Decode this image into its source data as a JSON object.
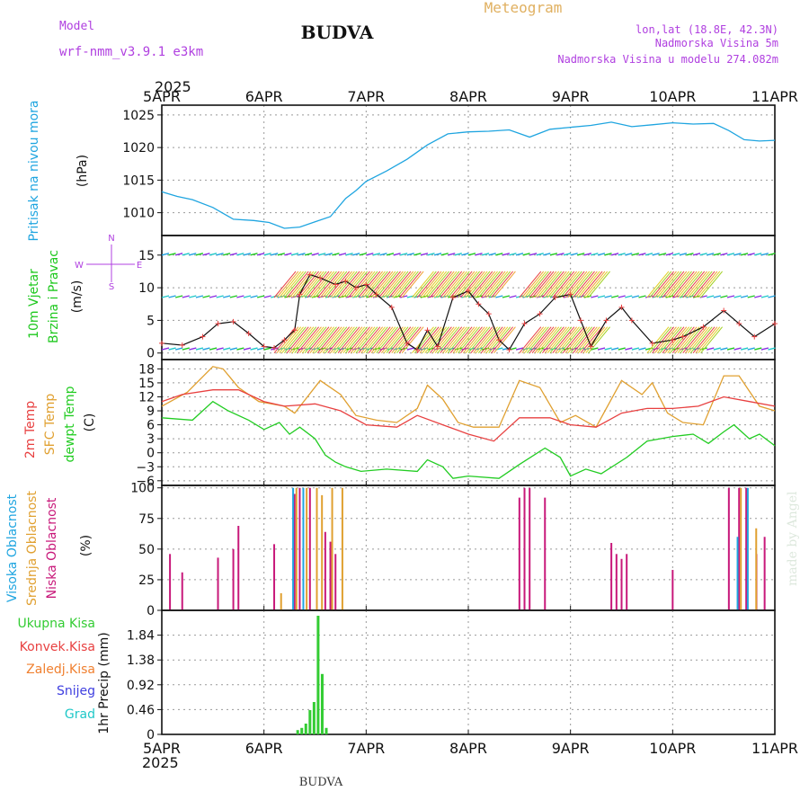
{
  "header": {
    "model_label": "Model",
    "model_name": "wrf-nmm_v3.9.1 e3km",
    "station": "BUDVA",
    "meteogram_label": "Meteogram",
    "lonlat": "lon,lat (18.8E, 42.3N)",
    "elevation": "Nadmorska Visina 5m",
    "model_elevation": "Nadmorska Visina u modelu 274.082m",
    "footer_station": "BUDVA",
    "made_by": "made by Angel"
  },
  "colors": {
    "pressure": "#1fa5e0",
    "wind_green": "#1ec81e",
    "temp_red": "#e84040",
    "sfc_orange": "#e0a030",
    "dewpt_green": "#22cc22",
    "high_cloud": "#1fa5e0",
    "mid_cloud": "#e0a030",
    "low_cloud": "#c8187a",
    "precip_total": "#33cc33",
    "precip_conv": "#e84040",
    "precip_frz": "#f08030",
    "precip_snow": "#4040e0",
    "precip_grad": "#20c8c8",
    "purple": "#b040e0"
  },
  "chart_data": [
    {
      "type": "line",
      "id": "pressure",
      "ylabel_parts": [
        "Pritisak na nivou mora",
        "(hPa)"
      ],
      "ylim": [
        1006.5,
        1026.5
      ],
      "yticks": [
        1010,
        1015,
        1020,
        1025
      ],
      "x_start": "5APR 2025",
      "x_ticks": [
        "5APR",
        "6APR",
        "7APR",
        "8APR",
        "9APR",
        "10APR",
        "11APR"
      ],
      "series": [
        {
          "name": "Pritisak na nivou mora",
          "x": [
            0,
            0.15,
            0.3,
            0.5,
            0.7,
            0.9,
            1.05,
            1.2,
            1.35,
            1.5,
            1.65,
            1.8,
            1.9,
            2.0,
            2.2,
            2.4,
            2.6,
            2.8,
            3.0,
            3.2,
            3.4,
            3.6,
            3.8,
            4.0,
            4.2,
            4.4,
            4.6,
            4.8,
            5.0,
            5.2,
            5.4,
            5.55,
            5.7,
            5.85,
            6.0
          ],
          "values": [
            1013.2,
            1012.5,
            1012.0,
            1010.8,
            1009.0,
            1008.8,
            1008.5,
            1007.6,
            1007.8,
            1008.6,
            1009.4,
            1012.2,
            1013.4,
            1014.8,
            1016.4,
            1018.2,
            1020.4,
            1022.1,
            1022.4,
            1022.5,
            1022.7,
            1021.6,
            1022.8,
            1023.1,
            1023.4,
            1023.9,
            1023.2,
            1023.5,
            1023.8,
            1023.6,
            1023.7,
            1022.6,
            1021.2,
            1021.0,
            1021.1
          ]
        }
      ]
    },
    {
      "type": "line",
      "id": "wind",
      "ylabel_parts": [
        "10m Vjetar",
        "Brzina i Pravac",
        "(m/s)"
      ],
      "compass": {
        "n": "N",
        "s": "S",
        "w": "W",
        "e": "E"
      },
      "ylim": [
        -1,
        18
      ],
      "yticks": [
        0,
        5,
        10,
        15
      ],
      "barb_rows": [
        0.5,
        8.5,
        15
      ],
      "series": [
        {
          "name": "Brzina",
          "x": [
            0,
            0.2,
            0.4,
            0.55,
            0.7,
            0.85,
            1.0,
            1.1,
            1.2,
            1.3,
            1.35,
            1.45,
            1.55,
            1.7,
            1.8,
            1.9,
            2.0,
            2.1,
            2.25,
            2.4,
            2.5,
            2.6,
            2.7,
            2.85,
            3.0,
            3.1,
            3.2,
            3.3,
            3.4,
            3.55,
            3.7,
            3.85,
            4.0,
            4.1,
            4.2,
            4.35,
            4.5,
            4.6,
            4.8,
            5.0,
            5.1,
            5.3,
            5.5,
            5.65,
            5.8,
            6.0
          ],
          "values": [
            1.5,
            1.2,
            2.5,
            4.5,
            4.8,
            3.0,
            1.0,
            0.8,
            2.0,
            3.5,
            9.0,
            12.0,
            11.5,
            10.5,
            11.0,
            10.0,
            10.5,
            9.0,
            7.0,
            1.5,
            0.5,
            3.5,
            1.0,
            8.5,
            9.5,
            7.5,
            6.0,
            2.0,
            0.5,
            4.5,
            6.0,
            8.5,
            9.0,
            5.0,
            1.0,
            5.0,
            7.0,
            5.0,
            1.5,
            2.0,
            2.5,
            4.0,
            6.5,
            4.5,
            2.5,
            4.5
          ]
        }
      ]
    },
    {
      "type": "line",
      "id": "temperature",
      "ylabel_parts": [
        "2m Temp",
        "SFC Temp",
        "dewpt Temp",
        "(C)"
      ],
      "ylim": [
        -7,
        20
      ],
      "yticks": [
        -6,
        -3,
        0,
        3,
        6,
        9,
        12,
        15,
        18
      ],
      "series": [
        {
          "name": "2m Temp",
          "x": [
            0,
            0.2,
            0.5,
            0.75,
            1.0,
            1.2,
            1.5,
            1.75,
            2.0,
            2.3,
            2.5,
            2.75,
            3.0,
            3.25,
            3.5,
            3.8,
            4.0,
            4.25,
            4.5,
            4.75,
            5.0,
            5.25,
            5.5,
            5.75,
            6.0
          ],
          "values": [
            11,
            12.5,
            13.5,
            13.5,
            11,
            10,
            10.5,
            9,
            6,
            5.5,
            8,
            6,
            4,
            2.5,
            7.5,
            7.5,
            6,
            5.5,
            8.5,
            9.5,
            9.5,
            10,
            12,
            11,
            10
          ]
        },
        {
          "name": "SFC Temp",
          "x": [
            0,
            0.25,
            0.5,
            0.6,
            0.75,
            0.95,
            1.2,
            1.3,
            1.55,
            1.75,
            1.9,
            2.1,
            2.3,
            2.5,
            2.6,
            2.75,
            2.9,
            3.05,
            3.3,
            3.5,
            3.7,
            3.9,
            4.05,
            4.25,
            4.5,
            4.7,
            4.8,
            4.95,
            5.1,
            5.3,
            5.5,
            5.65,
            5.85,
            6.0
          ],
          "values": [
            10,
            13,
            18.5,
            18,
            14,
            11,
            10,
            8.5,
            15.5,
            12.5,
            8,
            7,
            6.5,
            9.5,
            14.5,
            11.5,
            6.5,
            5.5,
            5.5,
            15.5,
            14,
            6.5,
            8,
            5.5,
            15.5,
            12.5,
            15,
            8.5,
            6.5,
            6,
            16.5,
            16.5,
            10,
            9
          ]
        },
        {
          "name": "dewpt Temp",
          "x": [
            0,
            0.3,
            0.5,
            0.65,
            0.85,
            1.0,
            1.15,
            1.25,
            1.35,
            1.5,
            1.6,
            1.7,
            1.8,
            1.95,
            2.2,
            2.5,
            2.6,
            2.75,
            2.85,
            3.0,
            3.3,
            3.5,
            3.75,
            3.9,
            4.0,
            4.15,
            4.3,
            4.55,
            4.75,
            5.0,
            5.2,
            5.35,
            5.5,
            5.6,
            5.75,
            5.85,
            6.0
          ],
          "values": [
            7.5,
            7,
            11,
            9,
            7,
            5,
            6.5,
            4,
            5.5,
            3,
            -0.5,
            -2,
            -3,
            -4,
            -3.5,
            -4,
            -1.5,
            -3,
            -5.5,
            -5,
            -5.5,
            -2.5,
            1,
            -1,
            -5,
            -3.5,
            -4.5,
            -1,
            2.5,
            3.5,
            4,
            2,
            4.5,
            6,
            3,
            4,
            1.5
          ]
        }
      ]
    },
    {
      "type": "bar",
      "id": "clouds",
      "ylabel_parts": [
        "Visoka Oblacnost",
        "Srednja Oblacnost",
        "Niska Oblacnost",
        "(%)"
      ],
      "ylim": [
        0,
        102
      ],
      "yticks": [
        0,
        25,
        50,
        75,
        100
      ],
      "series": [
        {
          "name": "Niska Oblacnost",
          "x": [
            0.08,
            0.2,
            0.55,
            0.7,
            0.75,
            1.1,
            1.3,
            1.35,
            1.45,
            1.6,
            1.65,
            1.7,
            3.5,
            3.55,
            3.6,
            3.75,
            4.4,
            4.45,
            4.5,
            4.55,
            5.0,
            5.55,
            5.65,
            5.72,
            5.82,
            5.9
          ],
          "values": [
            46,
            31,
            43,
            50,
            69,
            54,
            95,
            100,
            100,
            64,
            56,
            46,
            92,
            100,
            100,
            92,
            55,
            46,
            42,
            46,
            33,
            100,
            100,
            100,
            46,
            60
          ]
        },
        {
          "name": "Srednja Oblacnost",
          "x": [
            1.15,
            1.3,
            1.4,
            1.5,
            1.55,
            1.65,
            1.75,
            5.65,
            5.8
          ],
          "values": [
            14,
            100,
            100,
            100,
            94,
            100,
            100,
            100,
            67
          ]
        },
        {
          "name": "Visoka Oblacnost",
          "x": [
            1.25,
            1.35,
            5.6,
            5.7
          ],
          "values": [
            100,
            100,
            60,
            100
          ]
        }
      ]
    },
    {
      "type": "bar",
      "id": "precip",
      "ylabel_parts": [
        "1hr Precip (mm)"
      ],
      "legend": [
        "Ukupna Kisa",
        "Konvek.Kisa",
        "Zaledj.Kisa",
        "Snijeg",
        "Grad"
      ],
      "ylim": [
        0,
        2.3
      ],
      "yticks": [
        0,
        0.46,
        0.92,
        1.38,
        1.84
      ],
      "ytick_labels": [
        "0",
        "0.46",
        "0.92",
        "1.38",
        "1.84"
      ],
      "x_end": "2025",
      "series": [
        {
          "name": "Ukupna Kisa",
          "x": [
            1.33,
            1.37,
            1.41,
            1.45,
            1.49,
            1.53,
            1.57,
            1.61
          ],
          "values": [
            0.08,
            0.12,
            0.2,
            0.45,
            0.6,
            2.2,
            1.12,
            0.12
          ]
        }
      ]
    }
  ]
}
